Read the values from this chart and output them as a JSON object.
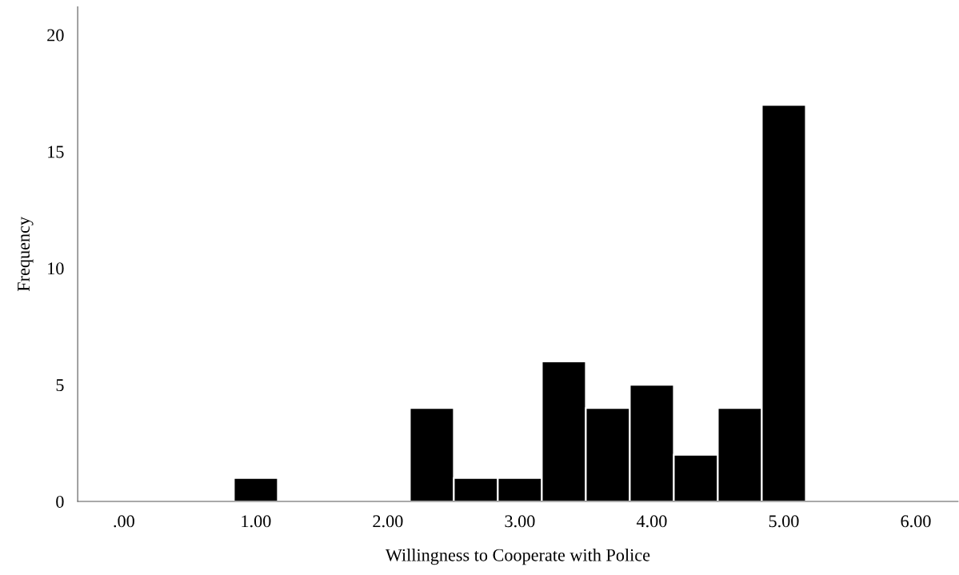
{
  "chart_data": {
    "type": "histogram",
    "xlabel": "Willingness to Cooperate with Police",
    "ylabel": "Frequency",
    "bins": [
      0.8333,
      1.1667,
      1.5,
      1.8333,
      2.1667,
      2.5,
      2.8333,
      3.1667,
      3.5,
      3.8333,
      4.1667,
      4.5,
      4.8333,
      5.1667
    ],
    "values": [
      1,
      0,
      0,
      0,
      4,
      1,
      1,
      6,
      4,
      5,
      2,
      4,
      17
    ],
    "color": "#000000",
    "xlim": [
      -0.35,
      6.32
    ],
    "ylim": [
      0,
      21.2
    ],
    "xticks": [
      {
        "value": 0,
        "label": ".00"
      },
      {
        "value": 1,
        "label": "1.00"
      },
      {
        "value": 2,
        "label": "2.00"
      },
      {
        "value": 3,
        "label": "3.00"
      },
      {
        "value": 4,
        "label": "4.00"
      },
      {
        "value": 5,
        "label": "5.00"
      },
      {
        "value": 6,
        "label": "6.00"
      }
    ],
    "yticks": [
      0,
      5,
      10,
      15,
      20
    ],
    "grid": false,
    "legend": false
  }
}
